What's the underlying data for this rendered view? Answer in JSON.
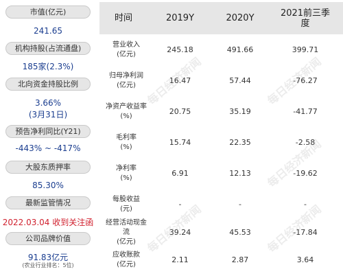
{
  "left_panel": [
    {
      "label": "市值(亿元)",
      "value": "241.65"
    },
    {
      "label": "机构持股(占流通盘)",
      "value": "185家(2.3%)"
    },
    {
      "label": "北向资金持股比例",
      "value": "3.66%",
      "value2": "(3月31日)"
    },
    {
      "label": "预告净利同比(Y21)",
      "value": "-443% ~ -417%"
    },
    {
      "label": "大股东质押率",
      "value": "85.30%"
    },
    {
      "label": "最新监管情况",
      "value": "2022.03.04 收到关注函"
    },
    {
      "label": "公司品牌价值",
      "value": "91.83亿元",
      "note": "(农业行业排名：5位)"
    }
  ],
  "table": {
    "headers": [
      "时间",
      "2019Y",
      "2020Y",
      "2021前三季度"
    ],
    "rows": [
      {
        "label": "营业收入(亿元)",
        "values": [
          "245.18",
          "491.66",
          "399.71"
        ]
      },
      {
        "label": "归母净利润(亿元)",
        "values": [
          "16.47",
          "57.44",
          "-76.27"
        ]
      },
      {
        "label": "净资产收益率(%)",
        "values": [
          "20.75",
          "35.19",
          "-41.77"
        ]
      },
      {
        "label": "毛利率(%)",
        "values": [
          "15.74",
          "22.35",
          "-2.58"
        ]
      },
      {
        "label": "净利率(%)",
        "values": [
          "6.91",
          "12.13",
          "-19.62"
        ]
      },
      {
        "label": "每股收益(元)",
        "values": [
          "-",
          "-",
          "-"
        ]
      },
      {
        "label": "经营活动现金流(亿元)",
        "values": [
          "39.24",
          "45.53",
          "-17.84"
        ]
      },
      {
        "label": "应收账款(亿元)",
        "values": [
          "2.11",
          "2.87",
          "3.64"
        ]
      }
    ]
  },
  "watermark": "每日经济新闻"
}
